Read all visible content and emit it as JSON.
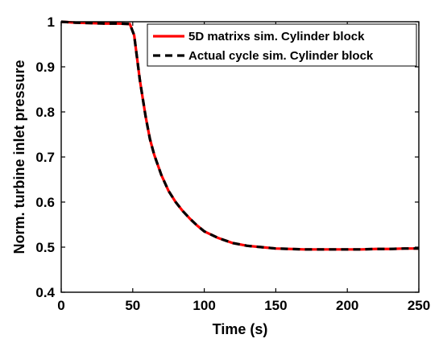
{
  "chart_data": {
    "type": "line",
    "title": "",
    "xlabel": "Time (s)",
    "ylabel": "Norm. turbine inlet pressure",
    "xlim": [
      0,
      250
    ],
    "ylim": [
      0.4,
      1.0
    ],
    "xticks": [
      0,
      50,
      100,
      150,
      200,
      250
    ],
    "yticks": [
      0.4,
      0.5,
      0.6,
      0.7,
      0.8,
      0.9,
      1.0
    ],
    "xtick_labels": [
      "0",
      "50",
      "100",
      "150",
      "200",
      "250"
    ],
    "ytick_labels": [
      "0.4",
      "0.5",
      "0.6",
      "0.7",
      "0.8",
      "0.9",
      "1"
    ],
    "grid": false,
    "legend_position": "top-right",
    "series": [
      {
        "name": "5D matrixs sim. Cylinder block",
        "color": "#ff0000",
        "style": "solid",
        "x": [
          0,
          10,
          20,
          30,
          40,
          48,
          51,
          53,
          55,
          57,
          59,
          62,
          65,
          70,
          75,
          80,
          85,
          90,
          95,
          100,
          110,
          120,
          130,
          140,
          150,
          160,
          170,
          180,
          190,
          200,
          210,
          220,
          230,
          240,
          250
        ],
        "y": [
          1.0,
          0.998,
          0.997,
          0.996,
          0.996,
          0.995,
          0.97,
          0.92,
          0.87,
          0.83,
          0.79,
          0.74,
          0.705,
          0.66,
          0.625,
          0.6,
          0.58,
          0.563,
          0.548,
          0.535,
          0.52,
          0.509,
          0.503,
          0.5,
          0.497,
          0.496,
          0.495,
          0.495,
          0.495,
          0.495,
          0.495,
          0.496,
          0.496,
          0.497,
          0.497
        ]
      },
      {
        "name": "Actual cycle sim. Cylinder block",
        "color": "#000000",
        "style": "dashed",
        "x": [
          0,
          10,
          20,
          30,
          40,
          48,
          51,
          53,
          55,
          57,
          59,
          62,
          65,
          70,
          75,
          80,
          85,
          90,
          95,
          100,
          110,
          120,
          130,
          140,
          150,
          160,
          170,
          180,
          190,
          200,
          210,
          220,
          230,
          240,
          250
        ],
        "y": [
          1.0,
          0.998,
          0.997,
          0.996,
          0.996,
          0.995,
          0.97,
          0.92,
          0.87,
          0.83,
          0.79,
          0.74,
          0.705,
          0.66,
          0.625,
          0.6,
          0.58,
          0.563,
          0.548,
          0.535,
          0.52,
          0.509,
          0.503,
          0.5,
          0.497,
          0.496,
          0.495,
          0.495,
          0.495,
          0.495,
          0.495,
          0.496,
          0.496,
          0.497,
          0.497
        ]
      }
    ]
  }
}
